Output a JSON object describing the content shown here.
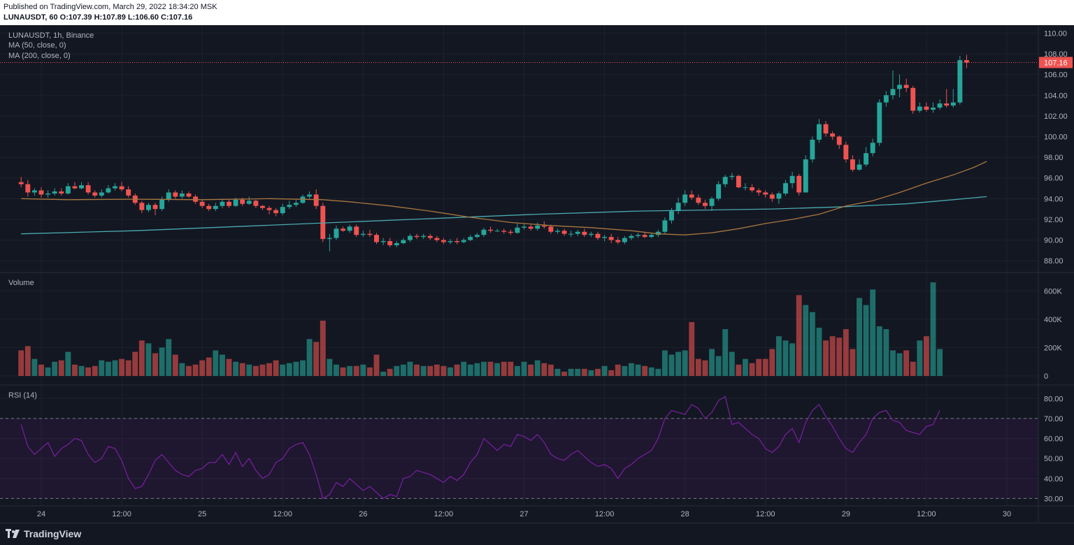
{
  "header": {
    "published": "Published on TradingView.com, March 29, 2022 18:34:20 MSK",
    "ohlc": "LUNAUSDT, 60 O:107.39 H:107.89 L:106.60 C:107.16"
  },
  "legend": {
    "symbol": "LUNAUSDT, 1h, Binance",
    "ma50": "MA (50, close, 0)",
    "ma200": "MA (200, close, 0)",
    "volume": "Volume",
    "rsi": "RSI (14)"
  },
  "footer": {
    "brand": "TradingView"
  },
  "colors": {
    "up": "#26a69a",
    "down": "#ef5350",
    "bg": "#131722",
    "ma50": "#a9773f",
    "ma200": "#4aa9b0",
    "rsi": "#7b1fa2"
  },
  "chart_data": {
    "type": "candlestick",
    "symbol": "LUNAUSDT",
    "interval": "1h",
    "exchange": "Binance",
    "last_price": "107.16",
    "price_axis": {
      "ylim": [
        87,
        110.5
      ],
      "ticks": [
        "110.00",
        "108.00",
        "106.00",
        "104.00",
        "102.00",
        "100.00",
        "98.00",
        "96.00",
        "94.00",
        "92.00",
        "90.00",
        "88.00"
      ]
    },
    "volume_axis": {
      "ylim": [
        0,
        700000
      ],
      "ticks": [
        "600K",
        "400K",
        "200K",
        "0"
      ]
    },
    "rsi_axis": {
      "ylim": [
        27,
        85
      ],
      "ticks": [
        "80.00",
        "70.00",
        "60.00",
        "50.00",
        "40.00",
        "30.00"
      ],
      "bands": [
        70,
        30
      ]
    },
    "x_axis": {
      "labels": [
        {
          "text": "24",
          "hour": 16
        },
        {
          "text": "12:00",
          "hour": 28
        },
        {
          "text": "25",
          "hour": 40
        },
        {
          "text": "12:00",
          "hour": 52
        },
        {
          "text": "26",
          "hour": 64
        },
        {
          "text": "12:00",
          "hour": 76
        },
        {
          "text": "27",
          "hour": 88
        },
        {
          "text": "12:00",
          "hour": 100
        },
        {
          "text": "28",
          "hour": 112
        },
        {
          "text": "12:00",
          "hour": 124
        },
        {
          "text": "29",
          "hour": 136
        },
        {
          "text": "12:00",
          "hour": 148
        },
        {
          "text": "30",
          "hour": 160
        }
      ],
      "hour_range": [
        13,
        165
      ]
    },
    "candles": {
      "start_hour": 13,
      "o": [
        95.6,
        95.4,
        94.6,
        94.8,
        94.4,
        94.5,
        94.7,
        94.5,
        95.2,
        95.0,
        95.3,
        94.6,
        94.3,
        94.6,
        95.0,
        95.2,
        94.9,
        94.3,
        93.6,
        92.9,
        93.4,
        93.0,
        93.9,
        94.6,
        94.2,
        94.5,
        94.2,
        93.7,
        93.3,
        93.0,
        93.3,
        93.7,
        93.3,
        93.9,
        93.5,
        93.8,
        93.3,
        93.1,
        92.9,
        92.6,
        93.2,
        93.4,
        93.6,
        94.2,
        94.4,
        93.3,
        90.1,
        90.2,
        91.1,
        90.9,
        91.3,
        90.5,
        90.6,
        90.5,
        89.8,
        89.9,
        89.5,
        89.7,
        90.0,
        90.4,
        90.3,
        90.4,
        90.2,
        90.0,
        89.8,
        89.9,
        89.8,
        90.0,
        90.3,
        90.5,
        91.0,
        90.9,
        90.9,
        90.8,
        90.7,
        91.2,
        91.3,
        91.1,
        91.4,
        91.3,
        90.8,
        90.9,
        90.6,
        90.6,
        90.8,
        90.5,
        90.6,
        90.2,
        90.3,
        90.0,
        89.8,
        90.2,
        90.4,
        90.5,
        90.3,
        90.5,
        90.8,
        91.9,
        92.8,
        93.6,
        94.4,
        94.1,
        93.6,
        93.3,
        94.0,
        95.4,
        96.1,
        96.2,
        95.1,
        95.1,
        94.8,
        94.6,
        94.4,
        94.0,
        94.5,
        95.5,
        96.2,
        94.6,
        97.8,
        99.7,
        101.2,
        100.3,
        100.0,
        99.2,
        97.8,
        96.8,
        97.3,
        98.4,
        99.4,
        103.3,
        104.0,
        104.6,
        105.0,
        104.7,
        102.5,
        102.9,
        102.6,
        102.8,
        103.2,
        103.0,
        103.3,
        107.39
      ],
      "c": [
        95.4,
        94.6,
        94.8,
        94.4,
        94.5,
        94.7,
        94.5,
        95.2,
        95.0,
        95.3,
        94.6,
        94.3,
        94.6,
        95.0,
        95.2,
        94.9,
        94.3,
        93.6,
        92.9,
        93.4,
        93.0,
        93.9,
        94.6,
        94.2,
        94.5,
        94.2,
        93.7,
        93.3,
        93.0,
        93.3,
        93.7,
        93.3,
        93.9,
        93.5,
        93.8,
        93.3,
        93.1,
        92.9,
        92.6,
        93.2,
        93.4,
        93.6,
        94.2,
        94.4,
        93.3,
        90.1,
        90.2,
        91.1,
        90.9,
        91.3,
        90.5,
        90.6,
        90.5,
        89.8,
        89.9,
        89.5,
        89.7,
        90.0,
        90.4,
        90.3,
        90.4,
        90.2,
        90.0,
        89.8,
        89.9,
        89.8,
        90.0,
        90.3,
        90.5,
        91.0,
        90.9,
        90.9,
        90.8,
        90.7,
        91.2,
        91.3,
        91.1,
        91.4,
        91.3,
        90.8,
        90.9,
        90.6,
        90.6,
        90.8,
        90.5,
        90.6,
        90.2,
        90.3,
        90.0,
        89.8,
        90.2,
        90.4,
        90.5,
        90.3,
        90.5,
        90.8,
        91.9,
        92.8,
        93.6,
        94.4,
        94.1,
        93.6,
        93.3,
        94.0,
        95.4,
        96.1,
        96.2,
        95.1,
        95.1,
        94.8,
        94.6,
        94.4,
        94.0,
        94.5,
        95.5,
        96.2,
        94.6,
        97.8,
        99.7,
        101.2,
        100.3,
        100.0,
        99.2,
        97.8,
        96.8,
        97.3,
        98.4,
        99.4,
        103.3,
        104.0,
        104.6,
        105.0,
        104.7,
        102.5,
        102.9,
        102.6,
        102.8,
        103.2,
        103.0,
        103.3,
        107.39,
        107.16
      ],
      "h": [
        96.1,
        95.8,
        95.0,
        95.1,
        94.8,
        95.0,
        95.0,
        95.5,
        95.6,
        95.6,
        95.6,
        94.8,
        94.9,
        95.3,
        95.5,
        95.6,
        95.2,
        94.5,
        93.8,
        93.6,
        93.6,
        94.2,
        94.9,
        94.8,
        94.8,
        94.7,
        94.4,
        93.9,
        93.5,
        93.6,
        94.0,
        93.9,
        94.1,
        94.1,
        94.2,
        93.9,
        93.4,
        93.3,
        93.1,
        93.5,
        93.8,
        93.9,
        94.4,
        94.7,
        94.9,
        93.6,
        90.6,
        91.4,
        91.3,
        91.5,
        91.5,
        90.9,
        91.0,
        90.7,
        90.2,
        90.2,
        89.9,
        90.2,
        90.6,
        90.6,
        90.6,
        90.6,
        90.4,
        90.2,
        90.1,
        90.2,
        90.2,
        90.5,
        90.7,
        91.2,
        91.3,
        91.1,
        91.1,
        91.0,
        91.6,
        91.6,
        91.5,
        91.7,
        91.8,
        91.5,
        91.1,
        91.1,
        90.9,
        91.0,
        91.1,
        90.8,
        90.8,
        90.5,
        90.6,
        90.3,
        90.4,
        90.6,
        90.7,
        90.8,
        90.7,
        91.0,
        92.2,
        93.1,
        94.1,
        94.8,
        94.8,
        94.4,
        93.9,
        94.2,
        95.7,
        96.3,
        96.5,
        96.3,
        95.5,
        95.4,
        95.0,
        94.8,
        94.6,
        94.7,
        95.8,
        96.6,
        96.4,
        98.2,
        100.0,
        101.7,
        101.5,
        100.5,
        100.1,
        99.5,
        98.2,
        97.8,
        99.0,
        99.8,
        103.6,
        104.4,
        106.4,
        106.0,
        105.6,
        104.9,
        103.3,
        103.3,
        103.3,
        103.6,
        104.6,
        104.6,
        107.8,
        107.89
      ],
      "l": [
        95.1,
        94.2,
        94.3,
        94.1,
        94.1,
        94.3,
        94.3,
        94.4,
        94.9,
        94.9,
        94.4,
        94.1,
        94.1,
        94.5,
        94.8,
        94.7,
        94.1,
        93.4,
        92.6,
        92.7,
        92.4,
        92.8,
        93.7,
        94.0,
        94.0,
        94.1,
        93.5,
        93.1,
        92.8,
        92.8,
        93.1,
        93.1,
        93.2,
        93.3,
        93.4,
        93.1,
        92.9,
        92.5,
        92.3,
        92.4,
        93.0,
        93.2,
        93.5,
        94.0,
        93.0,
        89.8,
        88.9,
        90.0,
        90.8,
        90.7,
        90.3,
        90.3,
        90.3,
        89.6,
        89.5,
        89.3,
        89.3,
        89.6,
        89.8,
        90.1,
        90.1,
        90.0,
        89.8,
        89.6,
        89.6,
        89.6,
        89.7,
        89.9,
        90.2,
        90.3,
        90.7,
        90.8,
        90.6,
        90.5,
        90.6,
        91.0,
        90.9,
        90.9,
        91.1,
        90.6,
        90.6,
        90.4,
        90.3,
        90.4,
        90.3,
        90.3,
        90.0,
        89.9,
        89.7,
        89.6,
        89.6,
        90.0,
        90.2,
        90.2,
        90.2,
        90.3,
        90.6,
        91.6,
        92.5,
        93.3,
        93.9,
        93.4,
        93.0,
        92.8,
        93.8,
        95.1,
        95.8,
        95.0,
        94.8,
        94.6,
        94.3,
        94.1,
        93.7,
        93.5,
        94.3,
        95.0,
        94.3,
        94.6,
        97.5,
        99.4,
        100.0,
        99.7,
        98.8,
        97.5,
        96.6,
        96.7,
        97.1,
        98.1,
        99.1,
        102.9,
        103.6,
        103.8,
        104.3,
        102.2,
        102.3,
        102.4,
        102.3,
        102.6,
        102.8,
        102.8,
        103.1,
        106.6
      ]
    },
    "ma50": {
      "points": [
        [
          13,
          94.0
        ],
        [
          20,
          93.9
        ],
        [
          30,
          93.95
        ],
        [
          40,
          93.9
        ],
        [
          50,
          94.0
        ],
        [
          58,
          93.9
        ],
        [
          62,
          93.7
        ],
        [
          68,
          93.3
        ],
        [
          74,
          92.8
        ],
        [
          80,
          92.2
        ],
        [
          86,
          91.7
        ],
        [
          92,
          91.4
        ],
        [
          98,
          91.2
        ],
        [
          104,
          90.9
        ],
        [
          108,
          90.6
        ],
        [
          112,
          90.5
        ],
        [
          116,
          90.7
        ],
        [
          120,
          91.1
        ],
        [
          124,
          91.6
        ],
        [
          128,
          92.0
        ],
        [
          132,
          92.5
        ],
        [
          136,
          93.3
        ],
        [
          140,
          93.8
        ],
        [
          144,
          94.6
        ],
        [
          148,
          95.5
        ],
        [
          152,
          96.3
        ],
        [
          155,
          97.0
        ],
        [
          157,
          97.6
        ]
      ]
    },
    "ma200": {
      "points": [
        [
          13,
          90.6
        ],
        [
          30,
          90.9
        ],
        [
          45,
          91.3
        ],
        [
          60,
          91.7
        ],
        [
          75,
          92.1
        ],
        [
          90,
          92.5
        ],
        [
          105,
          92.8
        ],
        [
          115,
          92.9
        ],
        [
          125,
          93.0
        ],
        [
          135,
          93.2
        ],
        [
          145,
          93.5
        ],
        [
          152,
          93.9
        ],
        [
          157,
          94.2
        ]
      ]
    },
    "volume": [
      180000,
      210000,
      120000,
      80000,
      60000,
      100000,
      110000,
      170000,
      80000,
      70000,
      60000,
      70000,
      110000,
      100000,
      110000,
      120000,
      110000,
      170000,
      250000,
      230000,
      160000,
      200000,
      260000,
      150000,
      90000,
      70000,
      80000,
      110000,
      130000,
      180000,
      150000,
      120000,
      100000,
      90000,
      80000,
      70000,
      80000,
      90000,
      110000,
      80000,
      90000,
      100000,
      110000,
      260000,
      240000,
      390000,
      120000,
      80000,
      60000,
      70000,
      70000,
      80000,
      60000,
      150000,
      30000,
      50000,
      70000,
      80000,
      100000,
      80000,
      70000,
      70000,
      80000,
      70000,
      60000,
      80000,
      100000,
      80000,
      90000,
      100000,
      100000,
      90000,
      100000,
      100000,
      70000,
      100000,
      80000,
      110000,
      90000,
      80000,
      50000,
      30000,
      50000,
      50000,
      50000,
      40000,
      50000,
      70000,
      40000,
      80000,
      70000,
      90000,
      80000,
      70000,
      60000,
      50000,
      180000,
      150000,
      170000,
      180000,
      380000,
      120000,
      110000,
      190000,
      140000,
      330000,
      170000,
      80000,
      120000,
      90000,
      120000,
      120000,
      190000,
      280000,
      250000,
      230000,
      570000,
      500000,
      450000,
      340000,
      250000,
      280000,
      270000,
      330000,
      190000,
      550000,
      500000,
      610000,
      350000,
      330000,
      180000,
      160000,
      180000,
      100000,
      250000,
      280000,
      660000,
      190000
    ],
    "rsi": [
      67,
      56,
      52,
      55,
      58,
      51,
      55,
      57,
      60,
      59,
      52,
      48,
      50,
      56,
      55,
      49,
      40,
      35,
      36,
      42,
      49,
      52,
      48,
      44,
      42,
      41,
      44,
      45,
      48,
      48,
      52,
      47,
      53,
      46,
      50,
      44,
      40,
      42,
      48,
      50,
      55,
      57,
      58,
      52,
      42,
      30,
      32,
      38,
      36,
      40,
      37,
      34,
      36,
      33,
      30,
      32,
      31,
      40,
      41,
      44,
      43,
      42,
      40,
      38,
      41,
      39,
      42,
      48,
      52,
      60,
      57,
      54,
      57,
      56,
      62,
      61,
      59,
      62,
      58,
      52,
      50,
      49,
      52,
      54,
      51,
      48,
      46,
      47,
      45,
      40,
      45,
      47,
      50,
      52,
      54,
      60,
      70,
      74,
      73,
      72,
      77,
      75,
      70,
      73,
      79,
      81,
      67,
      68,
      65,
      62,
      60,
      55,
      53,
      56,
      62,
      65,
      58,
      68,
      74,
      77,
      71,
      66,
      60,
      55,
      53,
      58,
      62,
      70,
      73,
      74,
      69,
      68,
      64,
      63,
      62,
      66,
      67,
      74
    ]
  }
}
